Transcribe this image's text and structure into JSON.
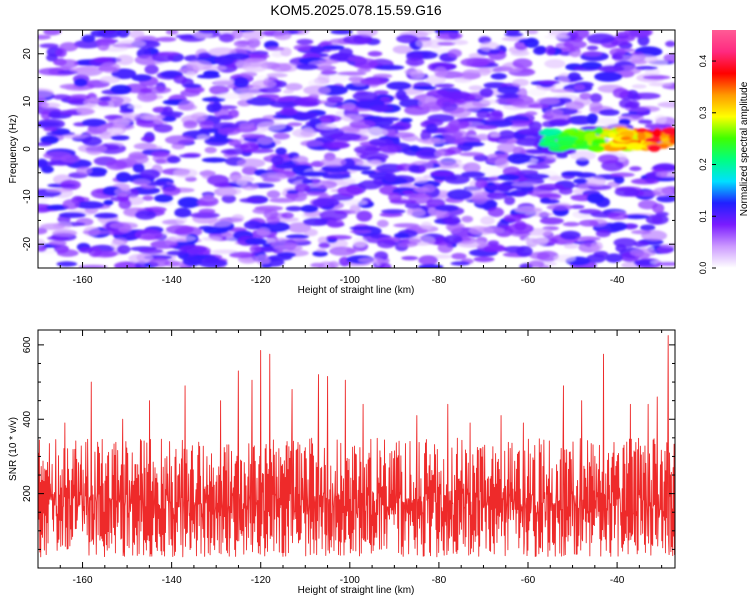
{
  "title": "KOM5.2025.078.15.59.G16",
  "chart_data": [
    {
      "type": "heatmap",
      "xlabel": "Height of straight line (km)",
      "ylabel": "Frequency (Hz)",
      "xlim": [
        -170,
        -27
      ],
      "ylim": [
        -25,
        25
      ],
      "x_ticks": [
        -160,
        -140,
        -120,
        -100,
        -80,
        -60,
        -40
      ],
      "x_tick_labels": [
        "-160",
        "-140",
        "-120",
        "-100",
        "-80",
        "-60",
        "-40"
      ],
      "y_ticks": [
        20,
        10,
        0,
        -10,
        -20
      ],
      "y_tick_labels": [
        "20",
        "10",
        "0",
        "-10",
        "-20"
      ],
      "colorbar": {
        "label": "Normalized spectral amplitude",
        "range": [
          0,
          0.46
        ],
        "ticks": [
          0.0,
          0.1,
          0.2,
          0.3,
          0.4
        ],
        "tick_labels": [
          "0.0",
          "0.1",
          "0.2",
          "0.3",
          "0.4"
        ],
        "colors": [
          "#ffffff",
          "#cc99ff",
          "#7a1cff",
          "#2020ff",
          "#00e0ff",
          "#00ff80",
          "#40ff00",
          "#ffff00",
          "#ff9900",
          "#ff0000",
          "#ff2a80",
          "#ff5b96"
        ]
      },
      "features": [
        {
          "description": "background noise",
          "x_range": [
            -170,
            -27
          ],
          "y_range": [
            -25,
            25
          ],
          "amplitude": [
            0.0,
            0.12
          ]
        },
        {
          "description": "strong signal band",
          "x_range": [
            -56,
            -27
          ],
          "y_range": [
            0,
            4
          ],
          "amplitude": [
            0.15,
            0.45
          ]
        }
      ],
      "grid": false
    },
    {
      "type": "line",
      "xlabel": "Height of straight line (km)",
      "ylabel": "SNR (10 * v/v)",
      "xlim": [
        -170,
        -27
      ],
      "ylim": [
        0,
        640
      ],
      "x_ticks": [
        -160,
        -140,
        -120,
        -100,
        -80,
        -60,
        -40
      ],
      "x_tick_labels": [
        "-160",
        "-140",
        "-120",
        "-100",
        "-80",
        "-60",
        "-40"
      ],
      "y_ticks": [
        200,
        400,
        600
      ],
      "y_tick_labels": [
        "200",
        "400",
        "600"
      ],
      "series": [
        {
          "color": "#ee2a2a",
          "typical_range": [
            30,
            350
          ],
          "peaks": [
            {
              "x": -164,
              "y": 390
            },
            {
              "x": -158,
              "y": 500
            },
            {
              "x": -151,
              "y": 400
            },
            {
              "x": -145,
              "y": 450
            },
            {
              "x": -137,
              "y": 490
            },
            {
              "x": -129,
              "y": 450
            },
            {
              "x": -125,
              "y": 530
            },
            {
              "x": -122,
              "y": 505
            },
            {
              "x": -120,
              "y": 585
            },
            {
              "x": -118,
              "y": 575
            },
            {
              "x": -113,
              "y": 480
            },
            {
              "x": -107,
              "y": 520
            },
            {
              "x": -105,
              "y": 515
            },
            {
              "x": -101,
              "y": 505
            },
            {
              "x": -97,
              "y": 440
            },
            {
              "x": -85,
              "y": 410
            },
            {
              "x": -78,
              "y": 440
            },
            {
              "x": -73,
              "y": 390
            },
            {
              "x": -66,
              "y": 410
            },
            {
              "x": -61,
              "y": 390
            },
            {
              "x": -52,
              "y": 490
            },
            {
              "x": -48,
              "y": 450
            },
            {
              "x": -43,
              "y": 575
            },
            {
              "x": -37,
              "y": 440
            },
            {
              "x": -33,
              "y": 440
            },
            {
              "x": -31,
              "y": 460
            },
            {
              "x": -28.5,
              "y": 625
            }
          ]
        }
      ],
      "grid": false
    }
  ]
}
